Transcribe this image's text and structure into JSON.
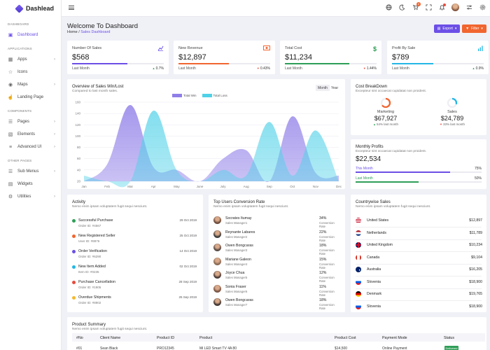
{
  "app": {
    "name": "Dashlead"
  },
  "sidebar": {
    "sections": [
      {
        "title": "DASHBOARD",
        "items": [
          {
            "label": "Dashboard",
            "icon": "monitor-icon",
            "active": true,
            "chevron": false
          }
        ]
      },
      {
        "title": "APPLICATIONS",
        "items": [
          {
            "label": "Apps",
            "icon": "grid-icon",
            "chevron": true
          },
          {
            "label": "Icons",
            "icon": "star-icon",
            "chevron": false
          },
          {
            "label": "Maps",
            "icon": "map-pin-icon",
            "chevron": true
          },
          {
            "label": "Landing Page",
            "icon": "pointer-icon",
            "chevron": false
          }
        ]
      },
      {
        "title": "COMPONENTS",
        "items": [
          {
            "label": "Pages",
            "icon": "layers-icon",
            "chevron": true
          },
          {
            "label": "Elements",
            "icon": "cube-icon",
            "chevron": true
          },
          {
            "label": "Advanced UI",
            "icon": "database-icon",
            "chevron": true
          }
        ]
      },
      {
        "title": "OTHER PAGES",
        "items": [
          {
            "label": "Sub Menus",
            "icon": "menu-icon",
            "chevron": true
          },
          {
            "label": "Widgets",
            "icon": "widget-icon",
            "chevron": false
          },
          {
            "label": "Utilities",
            "icon": "settings-icon",
            "chevron": true
          }
        ]
      }
    ]
  },
  "topbar": {
    "cart_badge": "2",
    "notif_badge": "",
    "colors": {
      "cart_badge": "#f1652f",
      "notif_badge": "#e74c3c"
    }
  },
  "header": {
    "title": "Welcome To Dashboard",
    "breadcrumb_home": "Home",
    "breadcrumb_sep": "/",
    "breadcrumb_current": "Sales Dashboard",
    "export_label": "Export",
    "filter_label": "Filter"
  },
  "stats": [
    {
      "label": "Number Of Sales",
      "value": "$568",
      "foot": "Last Month",
      "delta": "0.7%",
      "dir": "up",
      "icon": "chart-line-icon",
      "color": "#6c4fe6",
      "fill": 0.6
    },
    {
      "label": "New Revenue",
      "value": "$12,897",
      "foot": "Last Month",
      "delta": "0.43%",
      "dir": "down",
      "icon": "cash-icon",
      "color": "#f1652f",
      "fill": 0.55
    },
    {
      "label": "Total Cost",
      "value": "$11,234",
      "foot": "Last Month",
      "delta": "1.44%",
      "dir": "down",
      "icon": "dollar-icon",
      "color": "#2e9e57",
      "fill": 0.7
    },
    {
      "label": "Profit By Sale",
      "value": "$789",
      "foot": "Last Month",
      "delta": "0.9%",
      "dir": "up",
      "icon": "bar-chart-icon",
      "color": "#23b7e5",
      "fill": 0.45
    }
  ],
  "overview": {
    "title": "Overview of Sales Win/Lost",
    "subtitle": "Compared to last month sales.",
    "toggle_month": "Month",
    "toggle_year": "Year"
  },
  "chart_data": {
    "type": "area",
    "categories": [
      "Jan",
      "Feb",
      "Mar",
      "Apr",
      "May",
      "June",
      "July",
      "Aug",
      "Sep",
      "Oct",
      "Nov",
      "Dec"
    ],
    "series": [
      {
        "name": "Total Win",
        "color": "#8f7ee8",
        "values": [
          20,
          50,
          155,
          45,
          40,
          20,
          60,
          75,
          20,
          135,
          35,
          30
        ]
      },
      {
        "name": "Total Loss",
        "color": "#4fd1e8",
        "values": [
          30,
          20,
          20,
          145,
          40,
          20,
          40,
          30,
          125,
          30,
          110,
          20
        ]
      }
    ],
    "yticks": [
      20,
      40,
      60,
      80,
      100,
      120,
      140,
      160
    ],
    "ylim": [
      20,
      160
    ],
    "grid": true,
    "legend": "top-center"
  },
  "cost_breakdown": {
    "title": "Cost BreakDown",
    "subtitle": "Excepteur sint occaecat cupidatat non proident.",
    "items": [
      {
        "label": "Marketing",
        "value": "$67,927",
        "sub": "54% last month",
        "dir": "up",
        "color": "#f1652f",
        "fraction": 0.65
      },
      {
        "label": "Sales",
        "value": "$24,789",
        "sub": "33% last month",
        "dir": "down",
        "color": "#23b7e5",
        "fraction": 0.3
      }
    ]
  },
  "monthly_profits": {
    "title": "Monthly Profits",
    "subtitle": "Excepteur sint occaecat cupidatat non proident.",
    "value": "$22,534",
    "rows": [
      {
        "label": "This Month",
        "pct": "75%",
        "fill": 0.75,
        "color": "#6c4fe6"
      },
      {
        "label": "Last Month",
        "pct": "50%",
        "fill": 0.5,
        "color": "#2e9e57"
      }
    ]
  },
  "activity": {
    "title": "Activity",
    "subtitle": "Nemo enim ipsam voluptatem fugit sequi nesciunt.",
    "items": [
      {
        "title": "Successful Purchase",
        "id": "Order ID: #4567",
        "date": "29 Oct 2019",
        "color": "#2e9e57"
      },
      {
        "title": "New Registered Seller",
        "id": "User ID: #8976",
        "date": "25 Oct 2019",
        "color": "#f1652f"
      },
      {
        "title": "Order Verification",
        "id": "Order ID: #6290",
        "date": "14 Oct 2019",
        "color": "#6c4fe6"
      },
      {
        "title": "New Item Added",
        "id": "Item ID: #0235",
        "date": "02 Oct 2019",
        "color": "#23b7e5"
      },
      {
        "title": "Purchase Cancellation",
        "id": "Order ID: #1905",
        "date": "28 Sep 2019",
        "color": "#e74c3c"
      },
      {
        "title": "Overdue Shipments",
        "id": "Order ID: #8902",
        "date": "25 Sep 2019",
        "color": "#f5b82e"
      }
    ]
  },
  "top_users": {
    "title": "Top Users Conversion Rate",
    "subtitle": "Nemo enim ipsam voluptatem fugit sequi nesciunt.",
    "rate_label": "Conversion Rate",
    "users": [
      {
        "name": "Socrates Itumay",
        "role": "Sales Manager1",
        "pct": "34%"
      },
      {
        "name": "Reynante Labares",
        "role": "Sales Manager2",
        "pct": "22%"
      },
      {
        "name": "Owen Bongcaras",
        "role": "Sales Manager3",
        "pct": "18%"
      },
      {
        "name": "Mariane Galeon",
        "role": "Sales Manager4",
        "pct": "15%"
      },
      {
        "name": "Joyce Chua",
        "role": "Sales Manager5",
        "pct": "12%"
      },
      {
        "name": "Sonia Fraser",
        "role": "Sales Manager6",
        "pct": "11%"
      },
      {
        "name": "Owen Bongcaras",
        "role": "Sales Manager7",
        "pct": "18%"
      }
    ]
  },
  "countries": {
    "title": "Countrywise Sales",
    "subtitle": "Nemo enim ipsam voluptatem fugit sequi nesciunt.",
    "items": [
      {
        "name": "United States",
        "value": "$12,897",
        "flag": "us-flag-icon"
      },
      {
        "name": "Netherlands",
        "value": "$11,789",
        "flag": "nl-flag-icon"
      },
      {
        "name": "United Kingdom",
        "value": "$10,234",
        "flag": "uk-flag-icon"
      },
      {
        "name": "Canada",
        "value": "$9,104",
        "flag": "ca-flag-icon"
      },
      {
        "name": "Australia",
        "value": "$16,205",
        "flag": "au-flag-icon"
      },
      {
        "name": "Slovenia",
        "value": "$18,900",
        "flag": "si-flag-icon"
      },
      {
        "name": "Denmark",
        "value": "$19,765",
        "flag": "dk-flag-icon"
      },
      {
        "name": "Slovenia",
        "value": "$18,900",
        "flag": "si-flag-icon"
      }
    ]
  },
  "product_summary": {
    "title": "Product Summary",
    "subtitle": "Nemo enim ipsam voluptatem fugit sequi nesciunt.",
    "columns": [
      "#No",
      "Client Name",
      "Product ID",
      "Product",
      "Product Cost",
      "Payment Mode",
      "Status"
    ],
    "rows": [
      [
        "#01",
        "Sean Black",
        "PRO12345",
        "Mi LED Smart TV 4A 80",
        "$14,500",
        "Online Payment",
        "Delivered"
      ]
    ]
  }
}
